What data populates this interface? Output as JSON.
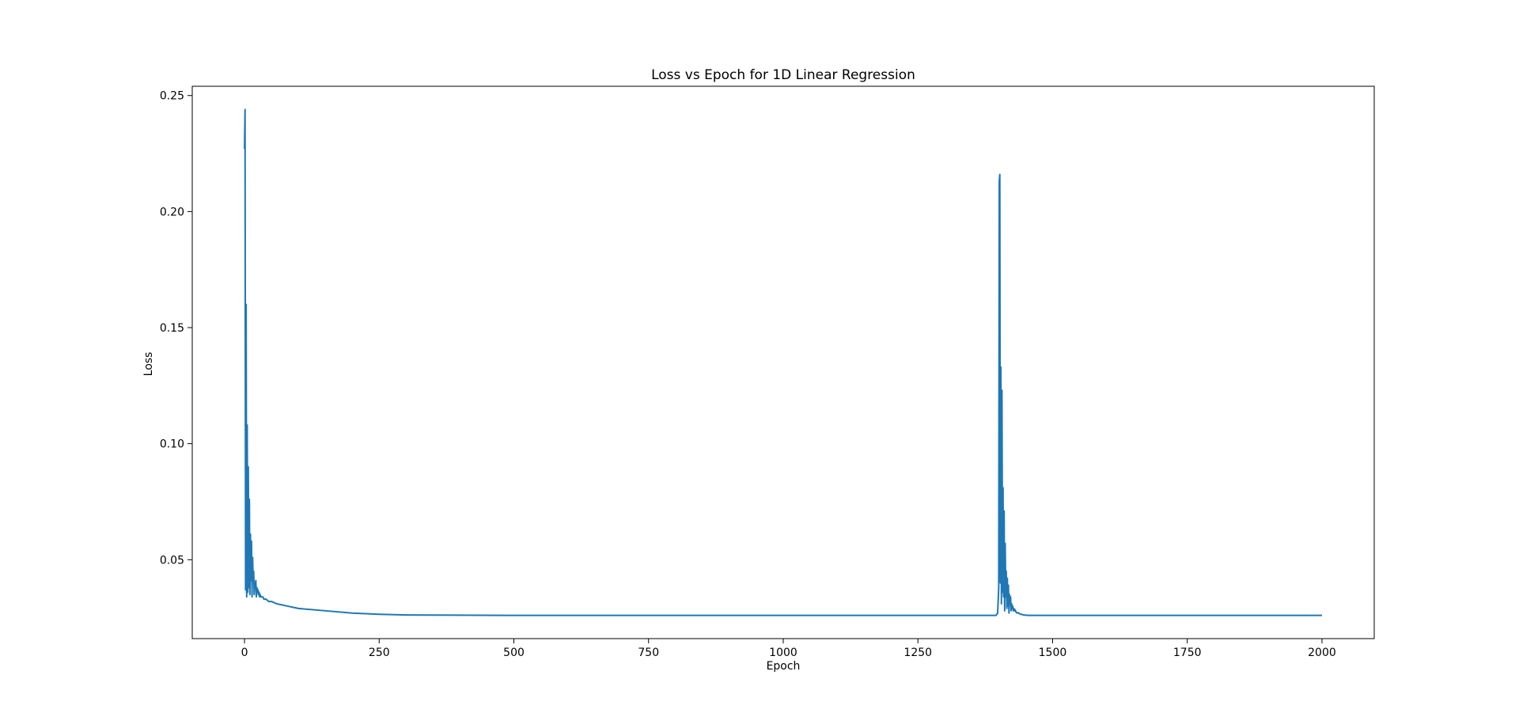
{
  "chart_data": {
    "type": "line",
    "title": "Loss vs Epoch for 1D Linear Regression",
    "xlabel": "Epoch",
    "ylabel": "Loss",
    "xlim": [
      -97,
      2097
    ],
    "ylim": [
      0.016,
      0.254
    ],
    "xticks": [
      0,
      250,
      500,
      750,
      1000,
      1250,
      1500,
      1750,
      2000
    ],
    "xtick_labels": [
      "0",
      "250",
      "500",
      "750",
      "1000",
      "1250",
      "1500",
      "1750",
      "2000"
    ],
    "yticks": [
      0.05,
      0.1,
      0.15,
      0.2,
      0.25
    ],
    "ytick_labels": [
      "0.05",
      "0.10",
      "0.15",
      "0.20",
      "0.25"
    ],
    "grid": false,
    "line_color": "#1f77b4",
    "series": [
      {
        "name": "Loss",
        "x": [
          0,
          1,
          2,
          3,
          4,
          5,
          6,
          7,
          8,
          9,
          10,
          11,
          12,
          13,
          14,
          15,
          16,
          17,
          18,
          19,
          20,
          21,
          22,
          23,
          24,
          25,
          26,
          27,
          28,
          29,
          30,
          32,
          34,
          36,
          38,
          40,
          45,
          50,
          60,
          80,
          100,
          150,
          200,
          250,
          300,
          400,
          500,
          750,
          1000,
          1250,
          1395,
          1398,
          1400,
          1401,
          1402,
          1403,
          1404,
          1405,
          1406,
          1407,
          1408,
          1409,
          1410,
          1411,
          1412,
          1413,
          1414,
          1415,
          1416,
          1417,
          1418,
          1419,
          1420,
          1421,
          1422,
          1423,
          1424,
          1425,
          1426,
          1427,
          1428,
          1429,
          1430,
          1432,
          1434,
          1436,
          1438,
          1440,
          1443,
          1446,
          1450,
          1455,
          1460,
          1470,
          1500,
          1750,
          2000
        ],
        "values": [
          0.227,
          0.244,
          0.037,
          0.16,
          0.034,
          0.108,
          0.036,
          0.09,
          0.038,
          0.076,
          0.035,
          0.061,
          0.041,
          0.058,
          0.034,
          0.051,
          0.042,
          0.045,
          0.035,
          0.04,
          0.039,
          0.041,
          0.034,
          0.038,
          0.036,
          0.037,
          0.035,
          0.036,
          0.034,
          0.035,
          0.034,
          0.034,
          0.034,
          0.033,
          0.033,
          0.033,
          0.032,
          0.032,
          0.031,
          0.03,
          0.029,
          0.028,
          0.027,
          0.0265,
          0.0262,
          0.0261,
          0.026,
          0.026,
          0.026,
          0.026,
          0.026,
          0.027,
          0.038,
          0.213,
          0.216,
          0.04,
          0.133,
          0.031,
          0.123,
          0.036,
          0.081,
          0.034,
          0.071,
          0.028,
          0.057,
          0.034,
          0.045,
          0.029,
          0.042,
          0.03,
          0.039,
          0.027,
          0.035,
          0.031,
          0.034,
          0.028,
          0.031,
          0.029,
          0.03,
          0.028,
          0.029,
          0.028,
          0.0285,
          0.0275,
          0.027,
          0.0272,
          0.0268,
          0.0266,
          0.0264,
          0.0262,
          0.0261,
          0.026,
          0.026,
          0.026,
          0.026,
          0.026,
          0.026
        ]
      }
    ]
  }
}
